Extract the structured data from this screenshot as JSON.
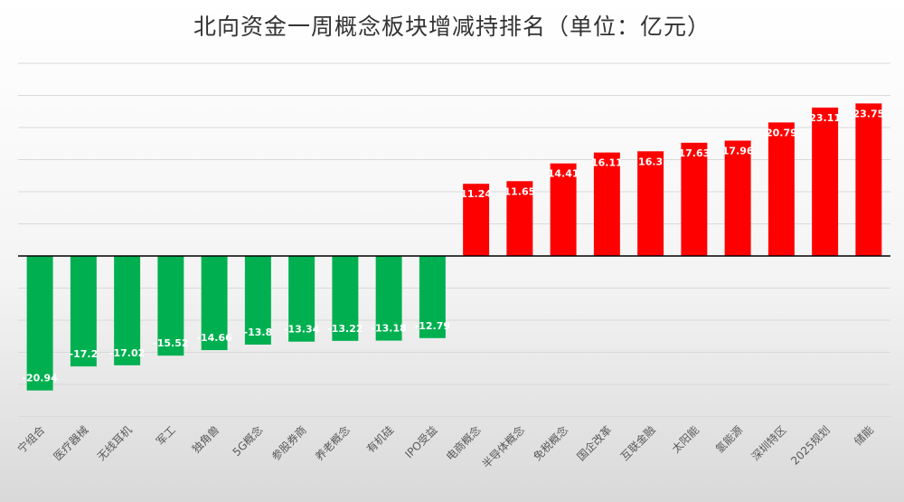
{
  "chart_data": {
    "type": "bar",
    "title": "北向资金一周概念板块增减持排名（单位：亿元）",
    "xlabel": "",
    "ylabel": "",
    "categories": [
      "宁组合",
      "医疗器械",
      "无线耳机",
      "军工",
      "独角兽",
      "5G概念",
      "参股券商",
      "养老概念",
      "有机硅",
      "IPO受益",
      "电商概念",
      "半导体概念",
      "免税概念",
      "国企改革",
      "互联金融",
      "太阳能",
      "氢能源",
      "深圳特区",
      "2025规划",
      "储能"
    ],
    "values": [
      -20.94,
      -17.2,
      -17.02,
      -15.52,
      -14.66,
      -13.8,
      -13.34,
      -13.22,
      -13.18,
      -12.79,
      11.24,
      11.65,
      14.41,
      16.11,
      16.3,
      17.63,
      17.96,
      20.79,
      23.11,
      23.75
    ],
    "ylim": [
      -25,
      30
    ],
    "grid": true,
    "legend": "none",
    "colors": {
      "positive": "#ff0000",
      "negative": "#00b050",
      "axis": "#000000",
      "grid": "#d9d9d9"
    }
  }
}
